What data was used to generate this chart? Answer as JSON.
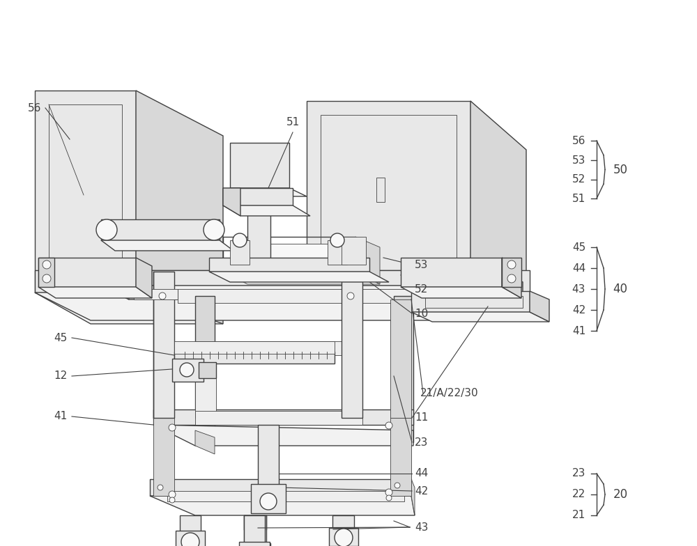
{
  "bg": "#ffffff",
  "lc": "#404040",
  "lw_main": 1.0,
  "lw_thin": 0.6,
  "label_fs": 11,
  "bracket_fs": 12,
  "fig_w": 10.0,
  "fig_h": 7.84,
  "face_front": "#e8e8e8",
  "face_top": "#f2f2f2",
  "face_side": "#d8d8d8",
  "face_inner": "#eeeeee",
  "face_white": "#f8f8f8"
}
